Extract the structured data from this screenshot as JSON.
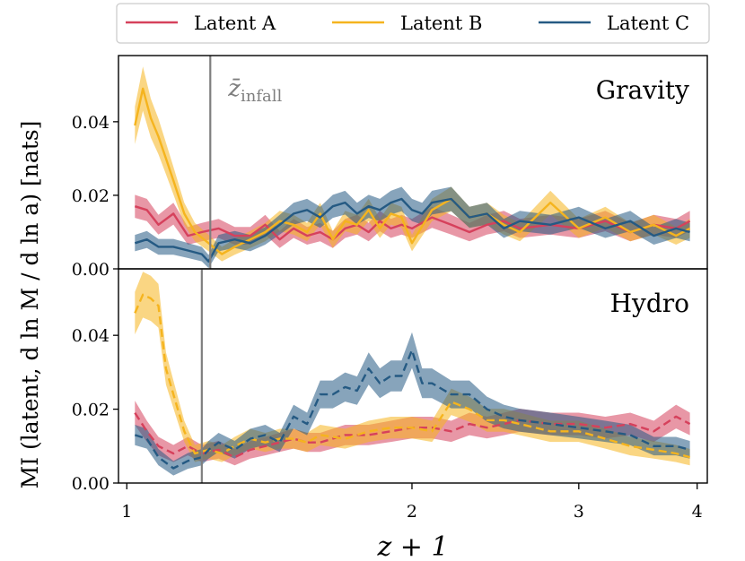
{
  "chart_data": {
    "type": "line",
    "xlabel": "z + 1",
    "ylabel": "MI (latent, d ln M / d ln a) [nats]",
    "xscale": "log",
    "xlim": [
      0.98,
      4.1
    ],
    "xticks": [
      1,
      2,
      3,
      4
    ],
    "ylim": [
      0.0,
      0.058
    ],
    "yticks": [
      0.0,
      0.02,
      0.04
    ],
    "ytick_labels": [
      "0.00",
      "0.02",
      "0.04"
    ],
    "legend": {
      "placement": "top, outside",
      "entries": [
        "Latent A",
        "Latent B",
        "Latent C"
      ]
    },
    "colors": {
      "Latent A": "#d6415c",
      "Latent B": "#f5b41e",
      "Latent C": "#255a83",
      "infall_line": "#7f7f7f"
    },
    "panels": [
      {
        "label": "Gravity",
        "infall_x": 1.225,
        "infall_label": "z̄",
        "infall_label_sub": "infall",
        "line_style": "solid",
        "series": [
          {
            "name": "Latent A",
            "x": [
              1.02,
              1.05,
              1.08,
              1.12,
              1.16,
              1.2,
              1.25,
              1.3,
              1.35,
              1.4,
              1.45,
              1.5,
              1.55,
              1.6,
              1.65,
              1.7,
              1.75,
              1.8,
              1.85,
              1.9,
              1.95,
              2.0,
              2.1,
              2.2,
              2.3,
              2.4,
              2.5,
              2.6,
              2.8,
              3.0,
              3.2,
              3.4,
              3.6,
              3.8,
              3.93
            ],
            "y": [
              0.017,
              0.016,
              0.012,
              0.015,
              0.009,
              0.01,
              0.011,
              0.009,
              0.009,
              0.012,
              0.008,
              0.011,
              0.009,
              0.01,
              0.008,
              0.011,
              0.012,
              0.01,
              0.013,
              0.011,
              0.012,
              0.011,
              0.014,
              0.012,
              0.01,
              0.012,
              0.013,
              0.011,
              0.012,
              0.011,
              0.013,
              0.01,
              0.012,
              0.011,
              0.013
            ]
          },
          {
            "name": "Latent B",
            "x": [
              1.02,
              1.04,
              1.06,
              1.08,
              1.1,
              1.12,
              1.15,
              1.18,
              1.22,
              1.26,
              1.3,
              1.35,
              1.4,
              1.45,
              1.5,
              1.55,
              1.6,
              1.65,
              1.7,
              1.75,
              1.8,
              1.85,
              1.9,
              1.95,
              2.0,
              2.1,
              2.2,
              2.3,
              2.4,
              2.5,
              2.6,
              2.8,
              3.0,
              3.2,
              3.4,
              3.6,
              3.8,
              3.93
            ],
            "y": [
              0.039,
              0.049,
              0.041,
              0.036,
              0.03,
              0.024,
              0.015,
              0.01,
              0.007,
              0.004,
              0.006,
              0.008,
              0.01,
              0.013,
              0.012,
              0.01,
              0.015,
              0.008,
              0.013,
              0.012,
              0.016,
              0.011,
              0.015,
              0.014,
              0.007,
              0.016,
              0.019,
              0.014,
              0.015,
              0.012,
              0.01,
              0.018,
              0.011,
              0.014,
              0.01,
              0.012,
              0.009,
              0.011
            ]
          },
          {
            "name": "Latent C",
            "x": [
              1.02,
              1.05,
              1.08,
              1.12,
              1.16,
              1.2,
              1.22,
              1.25,
              1.3,
              1.35,
              1.4,
              1.45,
              1.5,
              1.55,
              1.6,
              1.65,
              1.7,
              1.75,
              1.8,
              1.85,
              1.9,
              1.95,
              2.0,
              2.05,
              2.1,
              2.2,
              2.3,
              2.4,
              2.5,
              2.6,
              2.8,
              3.0,
              3.2,
              3.4,
              3.6,
              3.8,
              3.93
            ],
            "y": [
              0.007,
              0.008,
              0.006,
              0.006,
              0.005,
              0.004,
              0.002,
              0.007,
              0.008,
              0.007,
              0.009,
              0.012,
              0.015,
              0.016,
              0.014,
              0.017,
              0.018,
              0.015,
              0.017,
              0.016,
              0.018,
              0.019,
              0.016,
              0.015,
              0.018,
              0.019,
              0.014,
              0.015,
              0.011,
              0.013,
              0.012,
              0.014,
              0.011,
              0.013,
              0.009,
              0.011,
              0.01
            ]
          }
        ]
      },
      {
        "label": "Hydro",
        "infall_x": 1.2,
        "line_style": "dashed",
        "series": [
          {
            "name": "Latent A",
            "x": [
              1.02,
              1.05,
              1.08,
              1.12,
              1.16,
              1.2,
              1.25,
              1.3,
              1.35,
              1.4,
              1.45,
              1.5,
              1.55,
              1.6,
              1.7,
              1.8,
              1.9,
              2.0,
              2.1,
              2.2,
              2.3,
              2.4,
              2.5,
              2.6,
              2.8,
              3.0,
              3.2,
              3.4,
              3.6,
              3.8,
              3.93
            ],
            "y": [
              0.019,
              0.014,
              0.01,
              0.008,
              0.01,
              0.008,
              0.009,
              0.007,
              0.009,
              0.01,
              0.011,
              0.012,
              0.011,
              0.011,
              0.013,
              0.013,
              0.014,
              0.015,
              0.015,
              0.014,
              0.016,
              0.015,
              0.016,
              0.017,
              0.016,
              0.016,
              0.015,
              0.016,
              0.014,
              0.018,
              0.016
            ]
          },
          {
            "name": "Latent B",
            "x": [
              1.02,
              1.04,
              1.06,
              1.08,
              1.1,
              1.12,
              1.15,
              1.18,
              1.22,
              1.26,
              1.3,
              1.35,
              1.4,
              1.45,
              1.5,
              1.55,
              1.6,
              1.7,
              1.8,
              1.9,
              2.0,
              2.1,
              2.2,
              2.3,
              2.4,
              2.5,
              2.6,
              2.8,
              3.0,
              3.2,
              3.4,
              3.6,
              3.8,
              3.93
            ],
            "y": [
              0.046,
              0.051,
              0.05,
              0.048,
              0.031,
              0.024,
              0.014,
              0.008,
              0.009,
              0.008,
              0.01,
              0.012,
              0.011,
              0.012,
              0.012,
              0.011,
              0.013,
              0.012,
              0.014,
              0.015,
              0.015,
              0.014,
              0.022,
              0.02,
              0.017,
              0.017,
              0.016,
              0.014,
              0.014,
              0.012,
              0.01,
              0.009,
              0.008,
              0.007
            ]
          },
          {
            "name": "Latent C",
            "x": [
              1.02,
              1.05,
              1.08,
              1.12,
              1.16,
              1.2,
              1.22,
              1.25,
              1.3,
              1.35,
              1.4,
              1.45,
              1.5,
              1.55,
              1.6,
              1.65,
              1.7,
              1.75,
              1.8,
              1.85,
              1.9,
              1.95,
              2.0,
              2.05,
              2.1,
              2.2,
              2.3,
              2.4,
              2.5,
              2.6,
              2.8,
              3.0,
              3.2,
              3.4,
              3.6,
              3.8,
              3.93
            ],
            "y": [
              0.013,
              0.012,
              0.007,
              0.004,
              0.006,
              0.007,
              0.009,
              0.011,
              0.009,
              0.012,
              0.013,
              0.011,
              0.018,
              0.016,
              0.024,
              0.024,
              0.026,
              0.025,
              0.031,
              0.027,
              0.029,
              0.029,
              0.036,
              0.027,
              0.027,
              0.024,
              0.024,
              0.02,
              0.018,
              0.017,
              0.016,
              0.015,
              0.014,
              0.013,
              0.01,
              0.01,
              0.009
            ]
          }
        ]
      }
    ]
  }
}
